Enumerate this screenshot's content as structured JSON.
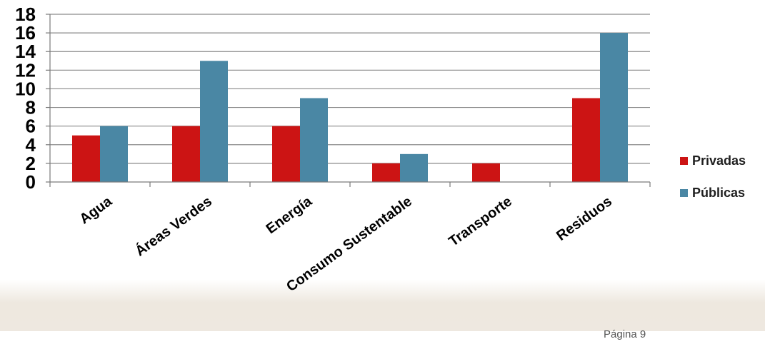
{
  "chart_data": {
    "type": "bar",
    "categories": [
      "Agua",
      "Áreas Verdes",
      "Energía",
      "Consumo Sustentable",
      "Transporte",
      "Residuos"
    ],
    "series": [
      {
        "name": "Privadas",
        "values": [
          5,
          6,
          6,
          2,
          2,
          9
        ],
        "color": "#cc1414"
      },
      {
        "name": "Públicas",
        "values": [
          6,
          13,
          9,
          3,
          0,
          16
        ],
        "color": "#4a87a4"
      }
    ],
    "ylim": [
      0,
      18
    ],
    "yticks": [
      0,
      2,
      4,
      6,
      8,
      10,
      12,
      14,
      16,
      18
    ],
    "grid": true,
    "legend_position": "right"
  },
  "footer": {
    "page_number": "Página 9"
  }
}
